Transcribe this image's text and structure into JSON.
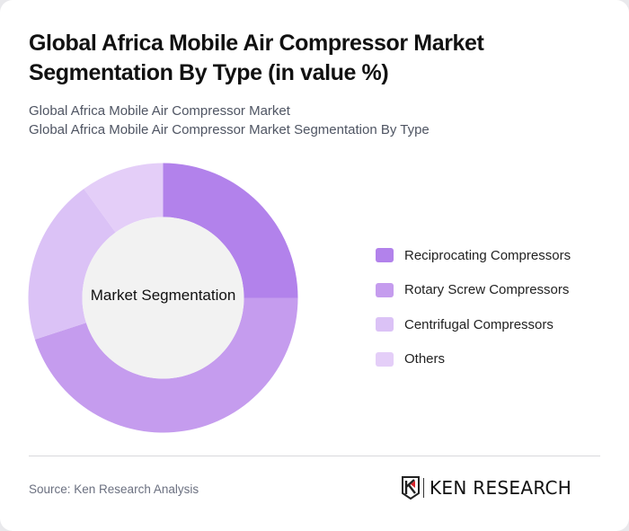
{
  "header": {
    "title": "Global Africa Mobile Air Compressor Market Segmentation By Type (in value %)",
    "subtitle_line1": "Global Africa Mobile Air Compressor Market",
    "subtitle_line2": "Global Africa Mobile Air Compressor Market Segmentation By Type"
  },
  "chart": {
    "center_label": "Market Segmentation"
  },
  "legend": [
    {
      "label": "Reciprocating Compressors",
      "color": "#b282eb"
    },
    {
      "label": "Rotary Screw Compressors",
      "color": "#c59cee"
    },
    {
      "label": "Centrifugal Compressors",
      "color": "#dbc2f6"
    },
    {
      "label": "Others",
      "color": "#e4cef8"
    }
  ],
  "footer": {
    "source": "Source: Ken Research Analysis",
    "logo_text": "KEN RESEARCH"
  },
  "chart_data": {
    "type": "pie",
    "subtype": "donut",
    "title": "Global Africa Mobile Air Compressor Market Segmentation By Type (in value %)",
    "center_label": "Market Segmentation",
    "categories": [
      "Reciprocating Compressors",
      "Rotary Screw Compressors",
      "Centrifugal Compressors",
      "Others"
    ],
    "values": [
      25,
      45,
      20,
      10
    ],
    "colors": [
      "#b282eb",
      "#c59cee",
      "#dbc2f6",
      "#e4cef8"
    ],
    "unit": "%",
    "legend_position": "right",
    "start_angle": "12 o'clock, clockwise"
  }
}
